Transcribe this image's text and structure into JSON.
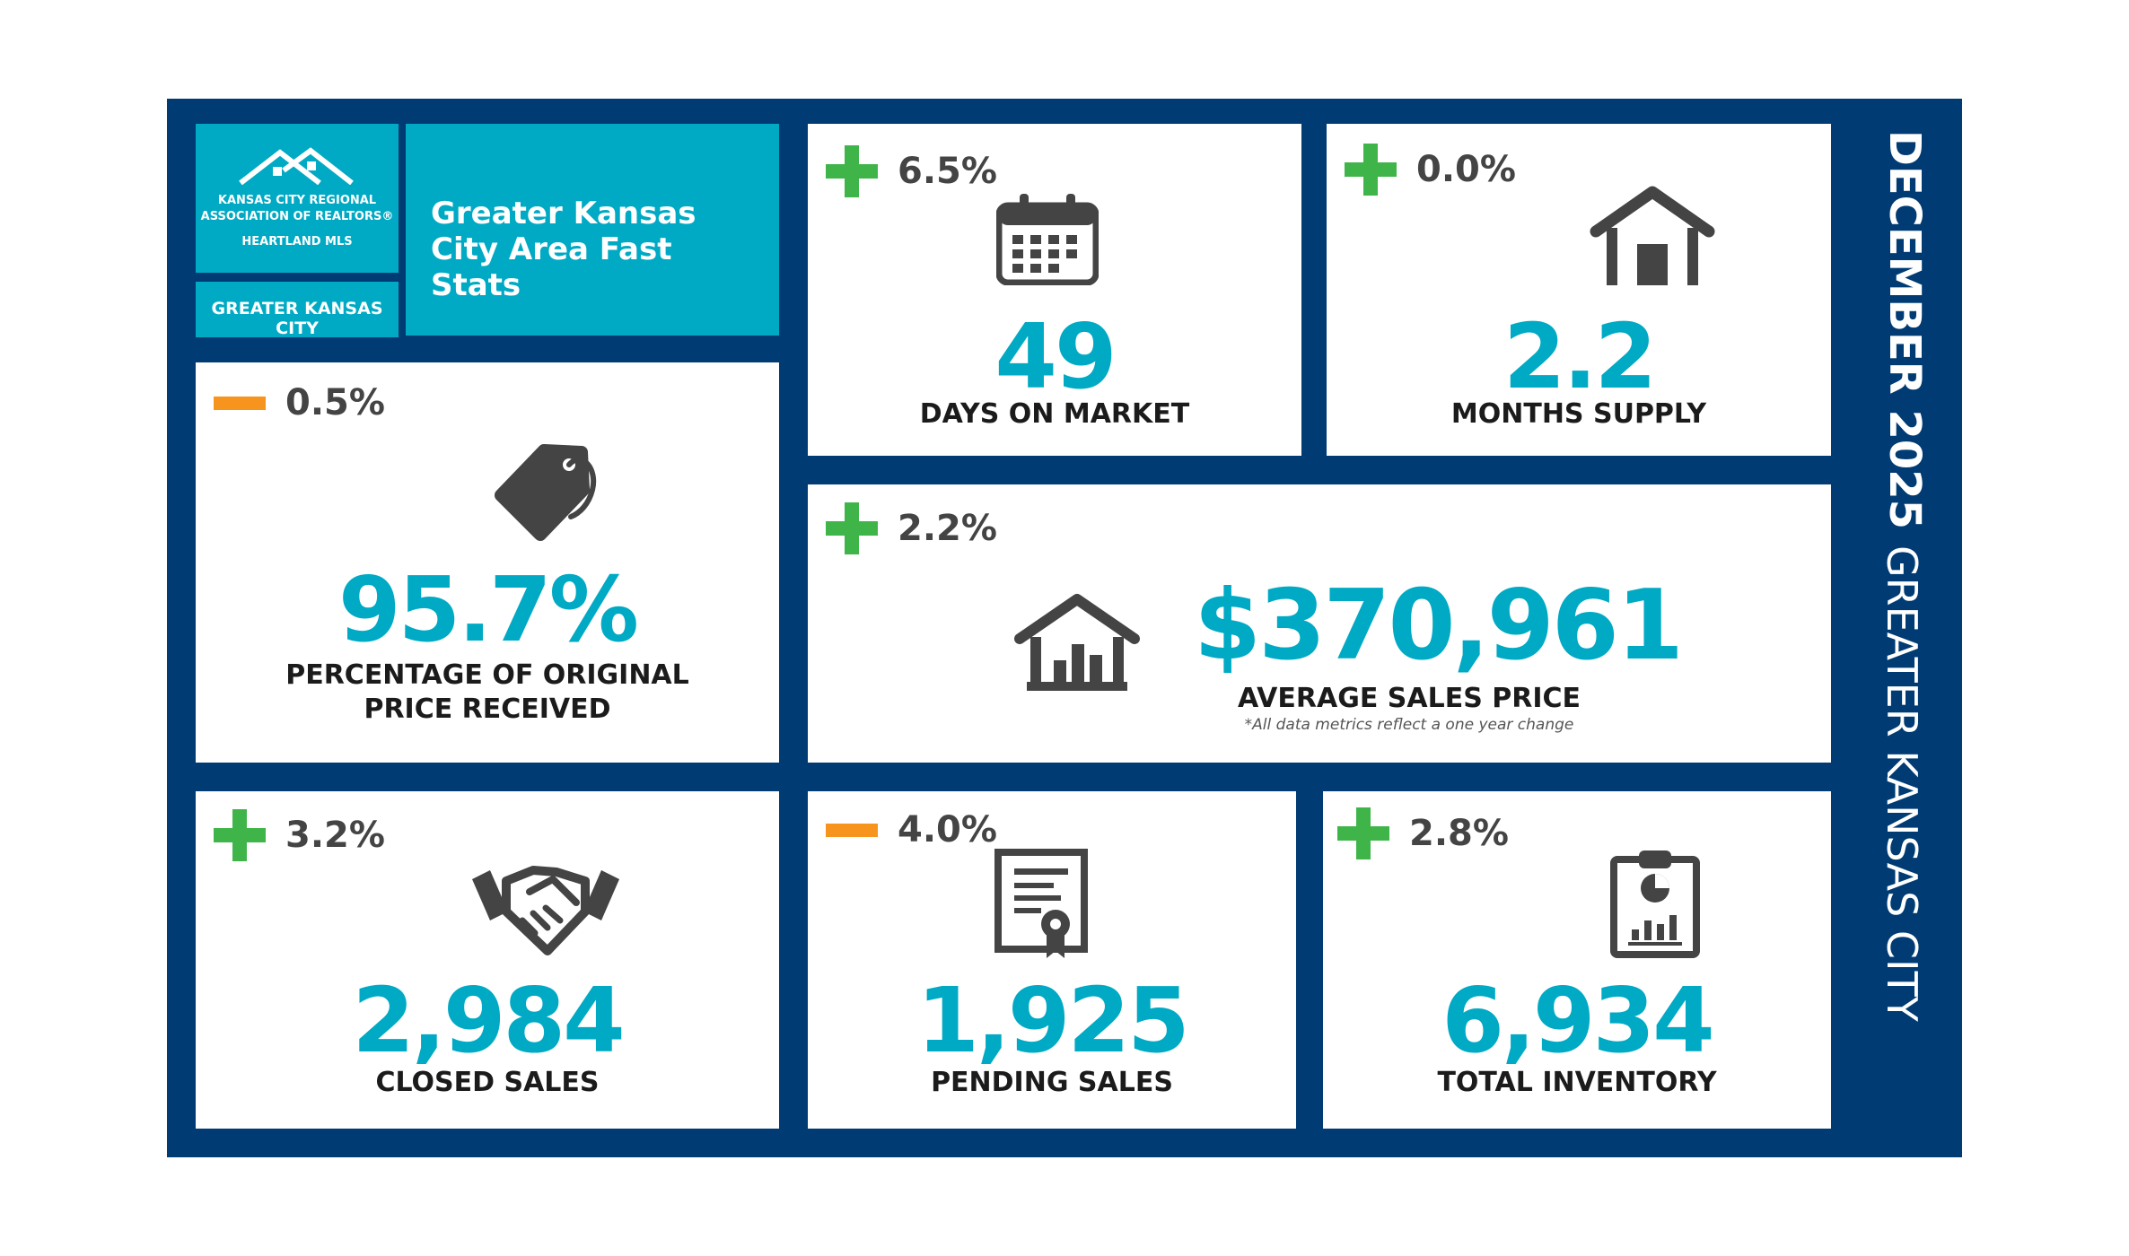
{
  "header": {
    "logo_line1": "KANSAS CITY REGIONAL",
    "logo_line2": "ASSOCIATION OF REALTORS®",
    "logo_line3": "HEARTLAND MLS",
    "region_tag": "GREATER KANSAS CITY",
    "title": "Greater Kansas City Area Fast Stats"
  },
  "side": {
    "month": "DECEMBER 2025",
    "region": "GREATER KANSAS CITY"
  },
  "stats": {
    "days_on_market": {
      "change": "6.5%",
      "direction": "up",
      "value": "49",
      "label": "DAYS ON MARKET",
      "icon": "calendar-icon"
    },
    "months_supply": {
      "change": "0.0%",
      "direction": "up",
      "value": "2.2",
      "label": "MONTHS SUPPLY",
      "icon": "house-icon"
    },
    "pct_original_price": {
      "change": "0.5%",
      "direction": "down",
      "value": "95.7%",
      "label_line1": "PERCENTAGE OF ORIGINAL",
      "label_line2": "PRICE RECEIVED",
      "icon": "price-tag-icon"
    },
    "avg_sales_price": {
      "change": "2.2%",
      "direction": "up",
      "value": "$370,961",
      "label": "AVERAGE SALES PRICE",
      "footnote": "*All data metrics reflect a one year change",
      "icon": "house-chart-icon"
    },
    "closed_sales": {
      "change": "3.2%",
      "direction": "up",
      "value": "2,984",
      "label": "CLOSED SALES",
      "icon": "handshake-icon"
    },
    "pending_sales": {
      "change": "4.0%",
      "direction": "down",
      "value": "1,925",
      "label": "PENDING SALES",
      "icon": "certificate-icon"
    },
    "total_inventory": {
      "change": "2.8%",
      "direction": "up",
      "value": "6,934",
      "label": "TOTAL INVENTORY",
      "icon": "clipboard-chart-icon"
    }
  },
  "colors": {
    "frame": "#003b73",
    "accent": "#00aac4",
    "increase": "#3fb549",
    "decrease": "#f7941d",
    "icon": "#444444"
  }
}
